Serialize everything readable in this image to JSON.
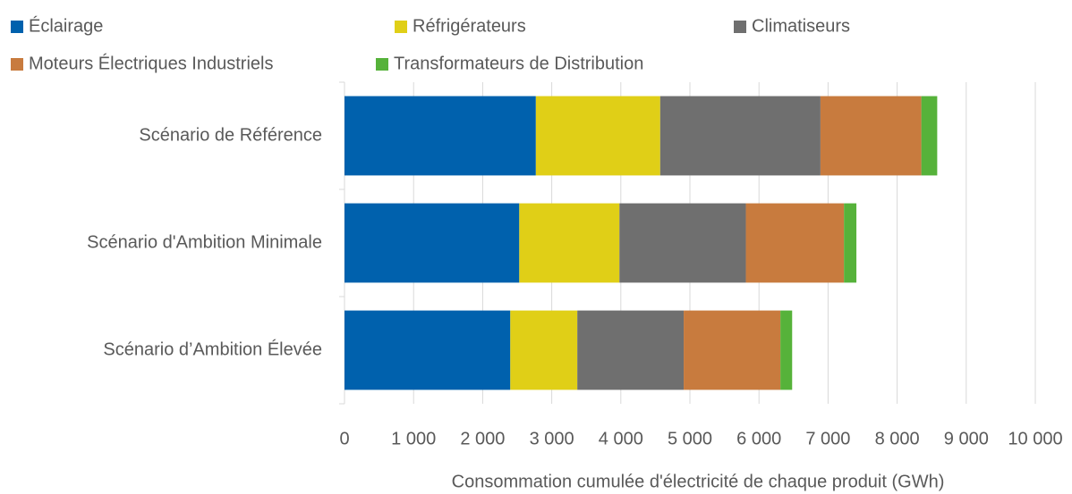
{
  "chart_data": {
    "type": "bar",
    "orientation": "horizontal",
    "stacked": true,
    "xlabel": "Consommation cumulée d'électricité de chaque produit (GWh)",
    "categories": [
      "Scénario de Référence",
      "Scénario d'Ambition Minimale",
      "Scénario d’Ambition Élevée"
    ],
    "series": [
      {
        "name": "Éclairage",
        "color": "#0061ad",
        "values": [
          2770,
          2530,
          2400
        ]
      },
      {
        "name": "Réfrigérateurs",
        "color": "#e0cf17",
        "values": [
          1800,
          1450,
          970
        ]
      },
      {
        "name": "Climatiseurs",
        "color": "#6f6f6f",
        "values": [
          2320,
          1830,
          1540
        ]
      },
      {
        "name": "Moteurs Électriques Industriels",
        "color": "#c87b3e",
        "values": [
          1460,
          1420,
          1400
        ]
      },
      {
        "name": "Transformateurs de Distribution",
        "color": "#56b23a",
        "values": [
          230,
          180,
          170
        ]
      }
    ],
    "xlim": [
      0,
      10000
    ],
    "xticks": [
      0,
      {
        "value": 1000,
        "label": "1 000"
      },
      {
        "value": 2000,
        "label": "2 000"
      },
      {
        "value": 3000,
        "label": "3 000"
      },
      {
        "value": 4000,
        "label": "4 000"
      },
      {
        "value": 5000,
        "label": "5 000"
      },
      {
        "value": 6000,
        "label": "6 000"
      },
      {
        "value": 7000,
        "label": "7 000"
      },
      {
        "value": 8000,
        "label": "8 000"
      },
      {
        "value": 9000,
        "label": "9 000"
      },
      {
        "value": 10000,
        "label": "10 000"
      }
    ],
    "grid": true,
    "legend": "top"
  }
}
